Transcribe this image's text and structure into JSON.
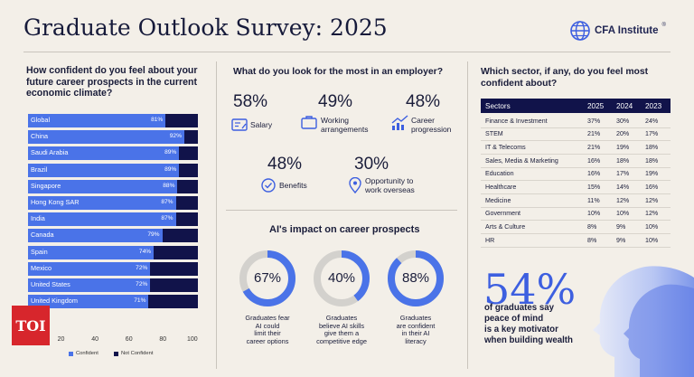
{
  "header": {
    "title": "Graduate Outlook Survey: 2025",
    "brand": "CFA Institute",
    "brand_mark": "®"
  },
  "left": {
    "question": [
      "How confident do you feel about your",
      "future career prospects in the current",
      "economic climate?"
    ],
    "axis_ticks": [
      "20",
      "40",
      "60",
      "80",
      "100"
    ],
    "legend": {
      "confident": "Confident",
      "not_confident": "Not Confident"
    }
  },
  "chart_data": {
    "type": "bar",
    "title": "How confident do you feel about your future career prospects in the current economic climate?",
    "categories": [
      "Global",
      "China",
      "Saudi Arabia",
      "Brazil",
      "Singapore",
      "Hong Kong SAR",
      "India",
      "Canada",
      "Spain",
      "Mexico",
      "United States",
      "United Kingdom"
    ],
    "series": [
      {
        "name": "Confident",
        "values": [
          81,
          92,
          89,
          89,
          88,
          87,
          87,
          79,
          74,
          72,
          72,
          71
        ],
        "labels": [
          "81%",
          "92%",
          "89%",
          "89%",
          "88%",
          "87%",
          "87%",
          "79%",
          "74%",
          "72%",
          "72%",
          "71%"
        ]
      },
      {
        "name": "Not Confident",
        "values": [
          19,
          8,
          11,
          11,
          12,
          13,
          13,
          21,
          26,
          28,
          28,
          29
        ]
      }
    ],
    "stacked": true,
    "orientation": "horizontal",
    "xlim": [
      0,
      100
    ],
    "xticks": [
      20,
      40,
      60,
      80,
      100
    ],
    "colors": {
      "Confident": "#4a73e8",
      "Not Confident": "#11134a"
    }
  },
  "employer": {
    "question": "What do you look for the most in an employer?",
    "items": [
      {
        "pct": "58%",
        "label": [
          "Salary"
        ],
        "icon": "salary-icon"
      },
      {
        "pct": "49%",
        "label": [
          "Working",
          "arrangements"
        ],
        "icon": "briefcase-icon"
      },
      {
        "pct": "48%",
        "label": [
          "Career",
          "progression"
        ],
        "icon": "growth-chart-icon"
      },
      {
        "pct": "48%",
        "label": [
          "Benefits"
        ],
        "icon": "check-circle-icon"
      },
      {
        "pct": "30%",
        "label": [
          "Opportunity to",
          "work overseas"
        ],
        "icon": "location-pin-icon"
      }
    ]
  },
  "ai": {
    "title": "AI's impact on career prospects",
    "items": [
      {
        "pct": "67%",
        "value": 67,
        "label": [
          "Graduates fear",
          "AI could",
          "limit their",
          "career options"
        ]
      },
      {
        "pct": "40%",
        "value": 40,
        "label": [
          "Graduates",
          "believe AI skills",
          "give them a",
          "competitive edge"
        ]
      },
      {
        "pct": "88%",
        "value": 88,
        "label": [
          "Graduates",
          "are confident",
          "in their AI",
          "literacy"
        ]
      }
    ]
  },
  "sector": {
    "question": [
      "Which sector, if any, do you feel most",
      "confident about?"
    ],
    "headers": [
      "Sectors",
      "2025",
      "2024",
      "2023"
    ],
    "rows": [
      [
        "Finance & Investment",
        "37%",
        "30%",
        "24%"
      ],
      [
        "STEM",
        "21%",
        "20%",
        "17%"
      ],
      [
        "IT & Telecoms",
        "21%",
        "19%",
        "18%"
      ],
      [
        "Sales, Media & Marketing",
        "16%",
        "18%",
        "18%"
      ],
      [
        "Education",
        "16%",
        "17%",
        "19%"
      ],
      [
        "Healthcare",
        "15%",
        "14%",
        "16%"
      ],
      [
        "Medicine",
        "11%",
        "12%",
        "12%"
      ],
      [
        "Government",
        "10%",
        "10%",
        "12%"
      ],
      [
        "Arts & Culture",
        "8%",
        "9%",
        "10%"
      ],
      [
        "HR",
        "8%",
        "9%",
        "10%"
      ]
    ]
  },
  "highlight": {
    "pct": "54%",
    "text": [
      "of graduates say",
      "peace of mind",
      "is a key motivator",
      "when building wealth"
    ]
  },
  "watermark": "TOI"
}
